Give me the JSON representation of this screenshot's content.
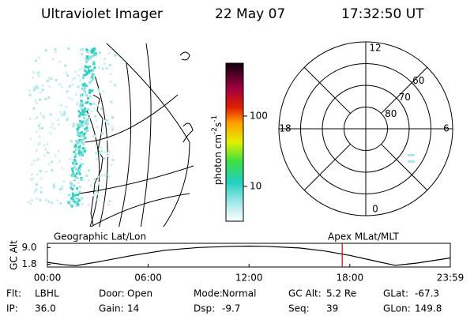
{
  "header": {
    "instrument": "Ultraviolet Imager",
    "date": "22 May 07",
    "time": "17:32:50 UT"
  },
  "image_panel": {
    "label": "Geographic Lat/Lon"
  },
  "colorbar": {
    "title_parts": [
      "photon cm",
      "-2",
      "s",
      "-1"
    ],
    "scale": "log",
    "lim": [
      3.2,
      565
    ],
    "ticks": [
      10,
      100
    ]
  },
  "polar_plot": {
    "label": "Apex MLat/MLT",
    "rlim": [
      90,
      50
    ],
    "rings": [
      60,
      70,
      80
    ],
    "mlt_labels": [
      12,
      18,
      6,
      0
    ]
  },
  "altitude_chart": {
    "type": "line",
    "ylabel": "GC Alt",
    "x": [
      0,
      1,
      1.7,
      3,
      5,
      7,
      9,
      11,
      12,
      13,
      15,
      16.5,
      18,
      19.5,
      20.7,
      22,
      23.98
    ],
    "values": [
      2.6,
      1.6,
      1.2,
      2.8,
      5.5,
      7.8,
      9.0,
      9.5,
      9.6,
      9.5,
      8.8,
      7.5,
      5.6,
      3.2,
      1.3,
      2.3,
      4.5
    ],
    "color": "#000000",
    "marker_color": "#cc0000",
    "xlim": [
      0,
      23.98
    ],
    "ylim": [
      0.6,
      10.8
    ],
    "xticks": [
      {
        "value": 0,
        "label": "00:00"
      },
      {
        "value": 6,
        "label": "06:00"
      },
      {
        "value": 12,
        "label": "12:00"
      },
      {
        "value": 18,
        "label": "18:00"
      },
      {
        "value": 23.98,
        "label": "23:59"
      }
    ],
    "yticks": [
      {
        "value": 9,
        "label": "9.0"
      },
      1.8
    ]
  },
  "status": {
    "rows": [
      [
        {
          "label": "Flt:",
          "value": "LBHL"
        },
        {
          "label": "Door:",
          "value": "Open"
        },
        {
          "label": "Mode:",
          "value": "Normal"
        },
        {
          "label": "GC Alt:",
          "value": "5.2 Re"
        },
        {
          "label": "GLat:",
          "value": "-67.3"
        }
      ],
      [
        {
          "label": "IP:",
          "value": "36.0"
        },
        {
          "label": "Gain:",
          "value": "14"
        },
        {
          "label": "Dsp:",
          "value": "-9.7"
        },
        {
          "label": "Seq:",
          "value": "39"
        },
        {
          "label": "GLon:",
          "value": "149.8"
        }
      ]
    ]
  }
}
